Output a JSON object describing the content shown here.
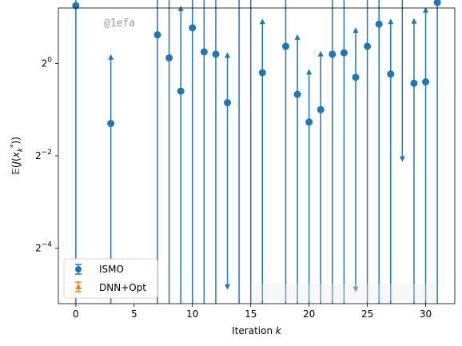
{
  "chart_data": {
    "type": "scatter",
    "xlabel": "Iteration k",
    "ylabel": "E(J(x_k^*))",
    "yscale": "log2",
    "xlim": [
      -1.5,
      32.5
    ],
    "ylim_log2": [
      -5.2,
      1.2
    ],
    "x_ticks": [
      0,
      5,
      10,
      15,
      20,
      25,
      30
    ],
    "y_ticks_log2": [
      -4,
      -2,
      0,
      2
    ],
    "grid": false,
    "legend_position": "lower-left",
    "watermark": "@1efa",
    "series": [
      {
        "name": "ISMO",
        "color": "#1f77b4",
        "marker": "circle",
        "points": [
          {
            "x": 0,
            "y_log2": 1.25,
            "up": 3.7,
            "down": true
          },
          {
            "x": 3,
            "y_log2": -1.3,
            "up": 0.15,
            "down": true
          },
          {
            "x": 7,
            "y_log2": 0.62,
            "up": 2.3,
            "down": true
          },
          {
            "x": 8,
            "y_log2": 0.12,
            "up": 1.65,
            "down": true
          },
          {
            "x": 9,
            "y_log2": -0.6,
            "up": 1.2,
            "down": true
          },
          {
            "x": 10,
            "y_log2": 0.77,
            "up": 2.47,
            "down": true
          },
          {
            "x": 11,
            "y_log2": 0.25,
            "up": 1.8,
            "down": true
          },
          {
            "x": 12,
            "y_log2": 0.2,
            "up": 1.57,
            "down": true
          },
          {
            "x": 13,
            "y_log2": -0.85,
            "up": 0.19,
            "down_end": -4.85
          },
          {
            "x": 14,
            "y_log2": 1.85,
            "up": 3.43,
            "down": true
          },
          {
            "x": 15,
            "y_log2": 1.7,
            "up": 3.17,
            "down": true
          },
          {
            "x": 16,
            "y_log2": -0.2,
            "up": 0.92,
            "down": true
          },
          {
            "x": 18,
            "y_log2": 0.37,
            "up": 1.58,
            "down": true
          },
          {
            "x": 19,
            "y_log2": -0.67,
            "up": 0.58,
            "down": true
          },
          {
            "x": 20,
            "y_log2": -1.27,
            "up": -0.17,
            "down": true
          },
          {
            "x": 21,
            "y_log2": -1.0,
            "up": 0.22,
            "down": true
          },
          {
            "x": 22,
            "y_log2": 0.2,
            "up": 1.8,
            "down": true
          },
          {
            "x": 23,
            "y_log2": 0.23,
            "up": 1.48,
            "down": true
          },
          {
            "x": 24,
            "y_log2": -0.3,
            "up": 0.73,
            "down_end": -4.9
          },
          {
            "x": 25,
            "y_log2": 0.37,
            "up": 2.15,
            "down": true
          },
          {
            "x": 26,
            "y_log2": 0.85,
            "up": 2.6,
            "down": true
          },
          {
            "x": 27,
            "y_log2": -0.23,
            "up": 0.92,
            "down": true
          },
          {
            "x": 28,
            "y_log2": 1.52,
            "up": 2.53,
            "down_end": -2.08
          },
          {
            "x": 29,
            "y_log2": -0.43,
            "up": 0.93,
            "down": true
          },
          {
            "x": 30,
            "y_log2": -0.4,
            "up": 1.17,
            "down": true
          },
          {
            "x": 31,
            "y_log2": 1.32,
            "up": 2.73,
            "down": true
          }
        ]
      },
      {
        "name": "DNN+Opt",
        "color": "#ff7f0e",
        "marker": "triangle",
        "points": []
      }
    ]
  }
}
